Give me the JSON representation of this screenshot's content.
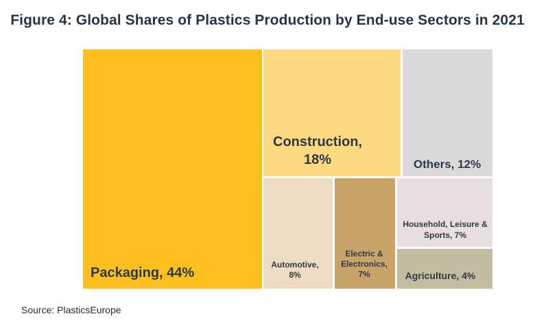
{
  "chart_data": {
    "type": "treemap",
    "title": "Figure 4: Global Shares of Plastics Production  by End-use Sectors in 2021",
    "source": "Source: PlasticsEurope",
    "items": [
      {
        "name": "Packaging",
        "label": "Packaging, 44%",
        "value": 44,
        "color": "#fcbf1e"
      },
      {
        "name": "Construction",
        "label": "Construction,\n18%",
        "value": 18,
        "color": "#fcd880"
      },
      {
        "name": "Others",
        "label": "Others, 12%",
        "value": 12,
        "color": "#d9d9d9"
      },
      {
        "name": "Automotive",
        "label": "Automotive,\n8%",
        "value": 8,
        "color": "#eedcc2"
      },
      {
        "name": "Electric & Electronics",
        "label": "Electric &\nElectronics,\n7%",
        "value": 7,
        "color": "#c9a46a"
      },
      {
        "name": "Household, Leisure & Sports",
        "label": "Household, Leisure &\nSports, 7%",
        "value": 7,
        "color": "#e7dedf"
      },
      {
        "name": "Agriculture",
        "label": "Agriculture, 4%",
        "value": 4,
        "color": "#c4bca0"
      }
    ]
  }
}
